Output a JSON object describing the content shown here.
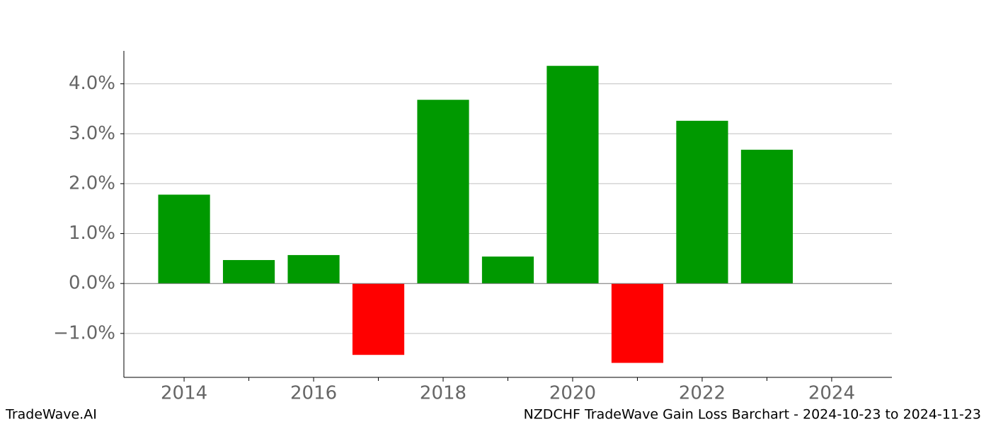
{
  "chart_data": {
    "type": "bar",
    "x": [
      2014,
      2015,
      2016,
      2017,
      2018,
      2019,
      2020,
      2021,
      2022,
      2023
    ],
    "values": [
      1.78,
      0.47,
      0.57,
      -1.43,
      3.68,
      0.54,
      4.36,
      -1.59,
      3.26,
      2.68
    ],
    "positive_color": "#009900",
    "negative_color": "#ff0000",
    "xlim": [
      2013.07,
      2024.93
    ],
    "xticks": [
      2014,
      2016,
      2018,
      2020,
      2022,
      2024
    ],
    "xminorticks": [
      2015,
      2017,
      2019,
      2021,
      2023
    ],
    "ylim": [
      -1.88,
      4.66
    ],
    "yticks": [
      {
        "value": -1,
        "label": "−1.0%"
      },
      {
        "value": 0,
        "label": "0.0%"
      },
      {
        "value": 1,
        "label": "1.0%"
      },
      {
        "value": 2,
        "label": "2.0%"
      },
      {
        "value": 3,
        "label": "3.0%"
      },
      {
        "value": 4,
        "label": "4.0%"
      }
    ],
    "grid": true,
    "source": "TradeWave.AI",
    "caption": "NZDCHF TradeWave Gain Loss Barchart - 2024-10-23 to 2024-11-23"
  }
}
